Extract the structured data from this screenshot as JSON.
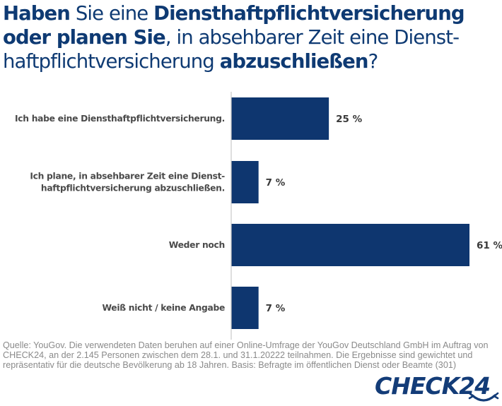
{
  "title": {
    "segments": [
      {
        "text": "Haben",
        "bold": true
      },
      {
        "text": " Sie eine ",
        "bold": false
      },
      {
        "text": "Diensthaftpflichtversicherung",
        "bold": true
      },
      {
        "text": " ",
        "bold": false
      },
      {
        "text": "oder planen Sie",
        "bold": true
      },
      {
        "text": ", in absehbarer Zeit eine Dienst-haftpflichtversicherung ",
        "bold": false
      },
      {
        "text": "abzuschließen",
        "bold": true
      },
      {
        "text": "?",
        "bold": false
      }
    ],
    "lines": [
      [
        {
          "text": "Haben",
          "bold": true
        },
        {
          "text": " Sie eine ",
          "bold": false
        },
        {
          "text": "Diensthaftpflichtversicherung",
          "bold": true
        }
      ],
      [
        {
          "text": "oder planen Sie",
          "bold": true
        },
        {
          "text": ", in absehbarer Zeit eine Dienst-",
          "bold": false
        }
      ],
      [
        {
          "text": "haftpflichtversicherung ",
          "bold": false
        },
        {
          "text": "abzuschließen",
          "bold": true
        },
        {
          "text": "?",
          "bold": false
        }
      ]
    ]
  },
  "chart_data": {
    "type": "bar",
    "orientation": "horizontal",
    "title": "Haben Sie eine Diensthaftpflichtversicherung oder planen Sie, in absehbarer Zeit eine Diensthaftpflichtversicherung abzuschließen?",
    "categories": [
      [
        "Ich habe eine Diensthaftpflichtversicherung."
      ],
      [
        "Ich plane, in absehbarer Zeit eine Dienst-",
        "haftpflichtversicherung abzuschließen."
      ],
      [
        "Weder noch"
      ],
      [
        "Weiß nicht / keine Angabe"
      ]
    ],
    "values": [
      25,
      7,
      61,
      7
    ],
    "value_labels": [
      "25 %",
      "7 %",
      "61 %",
      "7 %"
    ],
    "unit": "%",
    "xlabel": "",
    "ylabel": "",
    "xlim": [
      0,
      61
    ],
    "grid": false,
    "legend": "none",
    "bar_color": "#0e366f",
    "axis_color": "#c8c8c8"
  },
  "source": "Quelle: YouGov. Die verwendeten Daten beruhen auf einer Online-Umfrage der YouGov Deutschland GmbH im Auftrag von CHECK24, an der 2.145 Personen zwischen dem 28.1. und 31.1.20222 teilnahmen. Die Ergebnisse sind gewichtet und repräsentativ für die deutsche Bevölkerung ab 18 Jahren. Basis: Befragte im öffentlichen Dienst oder Beamte (301)",
  "logo": {
    "text": "CHECK24",
    "icon": "smile-arrow-icon",
    "color": "#133c78"
  }
}
